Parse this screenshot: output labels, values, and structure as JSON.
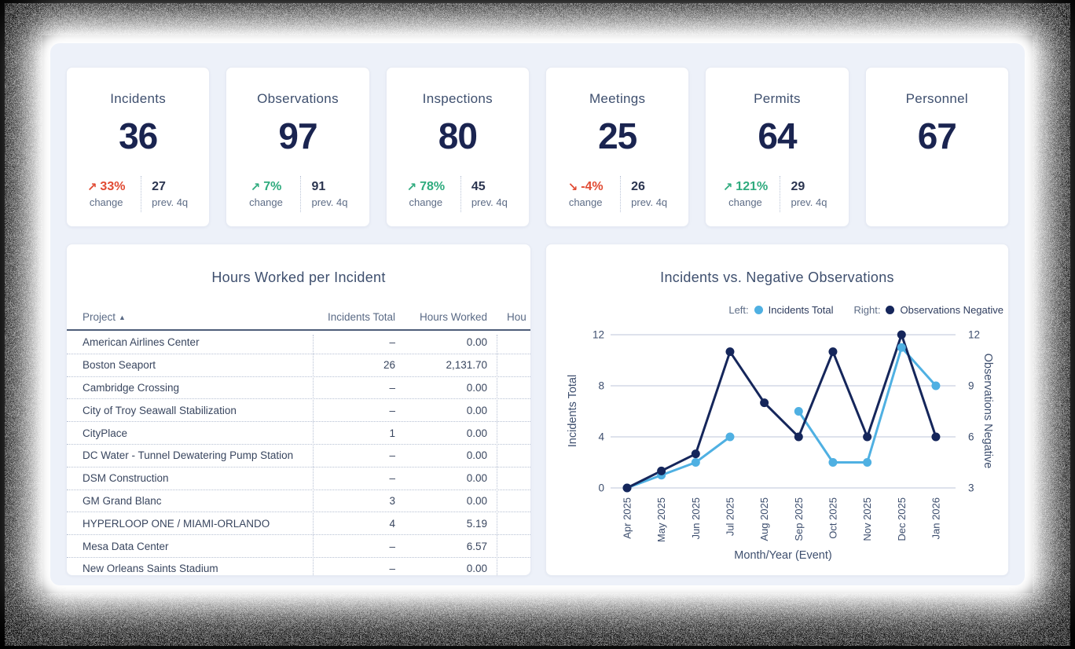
{
  "kpi_cards": [
    {
      "title": "Incidents",
      "value": "36",
      "change_pct": "33%",
      "change_dir": "up",
      "change_color": "#E14B33",
      "change_label": "change",
      "prev_value": "27",
      "prev_label": "prev. 4q"
    },
    {
      "title": "Observations",
      "value": "97",
      "change_pct": "7%",
      "change_dir": "up",
      "change_color": "#2FAB7E",
      "change_label": "change",
      "prev_value": "91",
      "prev_label": "prev. 4q"
    },
    {
      "title": "Inspections",
      "value": "80",
      "change_pct": "78%",
      "change_dir": "up",
      "change_color": "#2FAB7E",
      "change_label": "change",
      "prev_value": "45",
      "prev_label": "prev. 4q"
    },
    {
      "title": "Meetings",
      "value": "25",
      "change_pct": "-4%",
      "change_dir": "down",
      "change_color": "#E14B33",
      "change_label": "change",
      "prev_value": "26",
      "prev_label": "prev. 4q"
    },
    {
      "title": "Permits",
      "value": "64",
      "change_pct": "121%",
      "change_dir": "up",
      "change_color": "#2FAB7E",
      "change_label": "change",
      "prev_value": "29",
      "prev_label": "prev. 4q"
    },
    {
      "title": "Personnel",
      "value": "67"
    }
  ],
  "table": {
    "title": "Hours Worked per Incident",
    "columns": [
      "Project",
      "Incidents Total",
      "Hours Worked",
      "Hou"
    ],
    "sort_column": "Project",
    "sort_direction": "asc",
    "rows": [
      {
        "project": "American Airlines Center",
        "incidents_total": "–",
        "hours_worked": "0.00"
      },
      {
        "project": "Boston Seaport",
        "incidents_total": "26",
        "hours_worked": "2,131.70"
      },
      {
        "project": "Cambridge Crossing",
        "incidents_total": "–",
        "hours_worked": "0.00"
      },
      {
        "project": "City of Troy Seawall Stabilization",
        "incidents_total": "–",
        "hours_worked": "0.00"
      },
      {
        "project": "CityPlace",
        "incidents_total": "1",
        "hours_worked": "0.00"
      },
      {
        "project": "DC Water - Tunnel Dewatering Pump Station",
        "incidents_total": "–",
        "hours_worked": "0.00"
      },
      {
        "project": "DSM Construction",
        "incidents_total": "–",
        "hours_worked": "0.00"
      },
      {
        "project": "GM Grand Blanc",
        "incidents_total": "3",
        "hours_worked": "0.00"
      },
      {
        "project": "HYPERLOOP ONE / MIAMI-ORLANDO",
        "incidents_total": "4",
        "hours_worked": "5.19"
      },
      {
        "project": "Mesa Data Center",
        "incidents_total": "–",
        "hours_worked": "6.57"
      },
      {
        "project": "New Orleans Saints Stadium",
        "incidents_total": "–",
        "hours_worked": "0.00"
      }
    ]
  },
  "chart_data": {
    "type": "line",
    "title": "Incidents vs. Negative Observations",
    "x": [
      "Apr 2025",
      "May 2025",
      "Jun 2025",
      "Jul 2025",
      "Aug 2025",
      "Sep 2025",
      "Oct 2025",
      "Nov 2025",
      "Dec 2025",
      "Jan 2026"
    ],
    "xlabel": "Month/Year (Event)",
    "legend": [
      {
        "prefix": "Left:",
        "name": "Incidents Total",
        "color": "#4FB0E2"
      },
      {
        "prefix": "Right:",
        "name": "Observations Negative",
        "color": "#15265B"
      }
    ],
    "legend_position": "top-right",
    "grid": true,
    "left_axis": {
      "label": "Incidents Total",
      "ticks": [
        0,
        4,
        8,
        12
      ],
      "min": 0,
      "max": 12
    },
    "right_axis": {
      "label": "Observations Negative",
      "ticks": [
        3,
        6,
        9,
        12
      ],
      "min": 3,
      "max": 12
    },
    "series": [
      {
        "name": "Incidents Total",
        "axis": "left",
        "color": "#4FB0E2",
        "values": [
          0,
          1,
          2,
          4,
          null,
          6,
          2,
          2,
          11,
          8
        ]
      },
      {
        "name": "Observations Negative",
        "axis": "right",
        "color": "#15265B",
        "values": [
          3,
          4,
          5,
          11,
          8,
          6,
          11,
          6,
          12,
          6
        ]
      }
    ]
  },
  "colors": {
    "panel_bg": "#EDF1F9",
    "card_bg": "#FFFFFF",
    "title_text": "#3E4F6E",
    "value_text": "#1A2450",
    "negative_red": "#E14B33",
    "positive_green": "#2FAB7E",
    "gridline": "#C9D1E0",
    "series_blue": "#4FB0E2",
    "series_navy": "#15265B"
  },
  "glyphs": {
    "arrow_up": "↗",
    "arrow_down": "↘",
    "sort_asc": "▲"
  }
}
